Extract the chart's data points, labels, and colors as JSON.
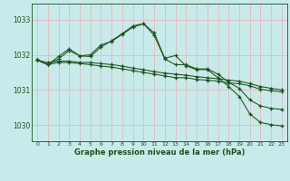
{
  "title": "Graphe pression niveau de la mer (hPa)",
  "background_color": "#c8eaea",
  "grid_color": "#e8b8b8",
  "line_color": "#1a5218",
  "xlim": [
    -0.5,
    23.5
  ],
  "ylim": [
    1029.55,
    1033.45
  ],
  "yticks": [
    1030,
    1031,
    1032,
    1033
  ],
  "xticks": [
    0,
    1,
    2,
    3,
    4,
    5,
    6,
    7,
    8,
    9,
    10,
    11,
    12,
    13,
    14,
    15,
    16,
    17,
    18,
    19,
    20,
    21,
    22,
    23
  ],
  "series": [
    {
      "x": [
        0,
        1,
        2,
        3,
        4,
        5,
        6,
        7,
        8,
        9,
        10,
        11,
        12,
        13,
        14,
        15,
        16,
        17,
        18,
        19,
        20,
        21,
        22,
        23
      ],
      "y": [
        1031.85,
        1031.72,
        1031.95,
        1032.17,
        1031.97,
        1032.0,
        1032.28,
        1032.38,
        1032.58,
        1032.78,
        1032.88,
        1032.62,
        1031.9,
        1031.98,
        1031.68,
        1031.58,
        1031.58,
        1031.35,
        1031.1,
        1030.82,
        1030.32,
        1030.08,
        1030.02,
        1029.98
      ]
    },
    {
      "x": [
        0,
        1,
        2,
        3,
        4,
        5,
        6,
        7,
        8,
        9,
        10,
        11,
        12,
        13,
        14,
        15,
        16,
        17,
        18,
        19,
        20,
        21,
        22,
        23
      ],
      "y": [
        1031.85,
        1031.72,
        1031.88,
        1032.12,
        1031.97,
        1031.95,
        1032.22,
        1032.4,
        1032.6,
        1032.82,
        1032.88,
        1032.55,
        1031.88,
        1031.72,
        1031.72,
        1031.6,
        1031.6,
        1031.45,
        1031.22,
        1031.05,
        1030.72,
        1030.55,
        1030.48,
        1030.45
      ]
    },
    {
      "x": [
        0,
        1,
        2,
        3,
        4,
        5,
        6,
        7,
        8,
        9,
        10,
        11,
        12,
        13,
        14,
        15,
        16,
        17,
        18,
        19,
        20,
        21,
        22,
        23
      ],
      "y": [
        1031.85,
        1031.78,
        1031.82,
        1031.82,
        1031.78,
        1031.78,
        1031.75,
        1031.72,
        1031.68,
        1031.62,
        1031.58,
        1031.52,
        1031.48,
        1031.45,
        1031.42,
        1031.38,
        1031.35,
        1031.32,
        1031.28,
        1031.25,
        1031.18,
        1031.1,
        1031.05,
        1031.0
      ]
    },
    {
      "x": [
        0,
        1,
        2,
        3,
        4,
        5,
        6,
        7,
        8,
        9,
        10,
        11,
        12,
        13,
        14,
        15,
        16,
        17,
        18,
        19,
        20,
        21,
        22,
        23
      ],
      "y": [
        1031.85,
        1031.72,
        1031.78,
        1031.78,
        1031.75,
        1031.72,
        1031.68,
        1031.65,
        1031.6,
        1031.55,
        1031.5,
        1031.45,
        1031.4,
        1031.35,
        1031.35,
        1031.3,
        1031.28,
        1031.25,
        1031.2,
        1031.18,
        1031.12,
        1031.02,
        1030.98,
        1030.95
      ]
    }
  ]
}
